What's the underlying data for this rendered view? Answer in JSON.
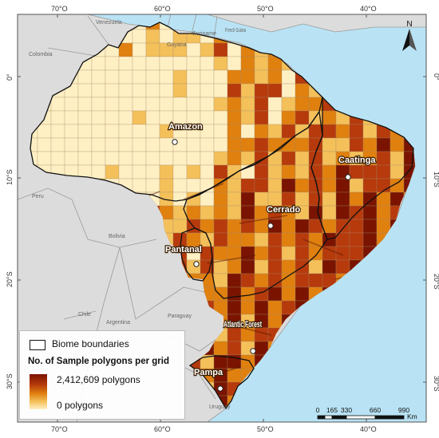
{
  "axes": {
    "top_labels": [
      "70°O",
      "60°O",
      "50°O",
      "40°O"
    ],
    "bottom_labels": [
      "70°O",
      "60°O",
      "50°O",
      "40°O"
    ],
    "left_labels": [
      "0°",
      "10°S",
      "20°S",
      "30°S"
    ],
    "right_labels": [
      "0°",
      "10°S",
      "20°S",
      "30°S"
    ]
  },
  "countries": [
    {
      "id": "venezuela",
      "label": "Venezuela"
    },
    {
      "id": "guyana",
      "label": "Guyana"
    },
    {
      "id": "suriname",
      "label": "Suriname"
    },
    {
      "id": "french-guiana",
      "label": "French Guiana"
    },
    {
      "id": "colombia",
      "label": "Colombia"
    },
    {
      "id": "peru",
      "label": "Peru"
    },
    {
      "id": "bolivia",
      "label": "Bolivia"
    },
    {
      "id": "paraguay",
      "label": "Paraguay"
    },
    {
      "id": "chile",
      "label": "Chile"
    },
    {
      "id": "argentina",
      "label": "Argentina"
    },
    {
      "id": "uruguay",
      "label": "Uruguay"
    }
  ],
  "biomes": [
    {
      "id": "amazon",
      "label": "Amazon"
    },
    {
      "id": "caatinga",
      "label": "Caatinga"
    },
    {
      "id": "cerrado",
      "label": "Cerrado"
    },
    {
      "id": "pantanal",
      "label": "Pantanal"
    },
    {
      "id": "atlantic-forest",
      "label": "Atlantic Forest"
    },
    {
      "id": "pampa",
      "label": "Pampa"
    }
  ],
  "legend": {
    "boundary_label": "Biome boundaries",
    "title": "No. of Sample polygons per grid",
    "max_label": "2,412,609 polygons",
    "min_label": "0 polygons",
    "gradient_colors": [
      "#7a1400",
      "#b63a0c",
      "#e0800f",
      "#f4c05a",
      "#fff0c4"
    ]
  },
  "north_arrow": {
    "label": "N"
  },
  "scale": {
    "ticks": [
      "0",
      "165",
      "330",
      "660",
      "990"
    ],
    "unit": "Km"
  },
  "colors": {
    "ocean": "#b9e3f4",
    "land": "#dcdcdc",
    "border": "#9a9a9a"
  }
}
